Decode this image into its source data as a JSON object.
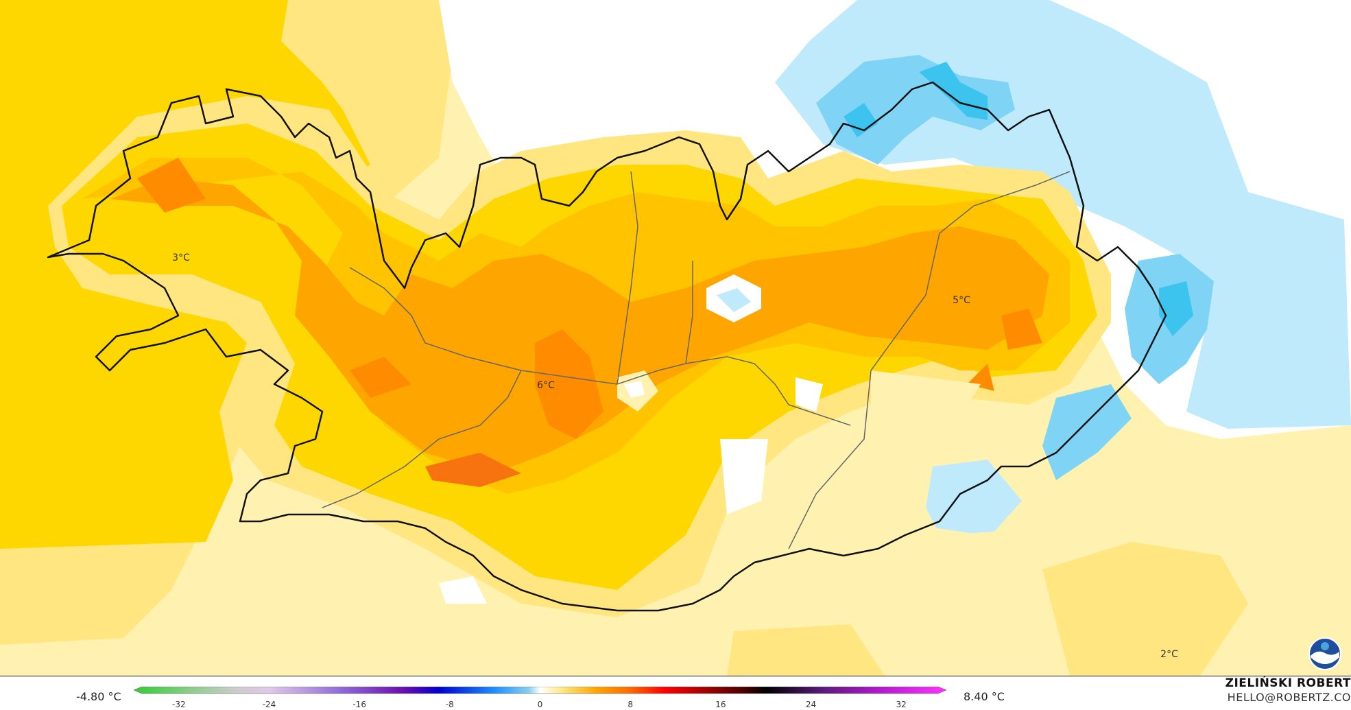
{
  "map": {
    "region_labels": {
      "west": "3°C",
      "center": "6°C",
      "east": "5°C",
      "southeast_sea": "2°C"
    },
    "colors": {
      "t_neg": "#bfeafc",
      "t_neg_strong": "#7fd4f5",
      "t_neg_core": "#3dc4ee",
      "t0": "#ffffff",
      "t1": "#fff2b0",
      "t2": "#ffe680",
      "t3": "#ffd700",
      "t4": "#ffc300",
      "t5": "#ffa500",
      "t6": "#ff8c00",
      "t7": "#f7730f",
      "coast": "#111111",
      "border": "#666666"
    },
    "logo": "noaa-logo-icon"
  },
  "legend": {
    "min_label": "-4.80 °C",
    "max_label": "8.40 °C",
    "ticks": [
      "-32",
      "-24",
      "-16",
      "-8",
      "0",
      "8",
      "16",
      "24",
      "32"
    ],
    "tick_values": [
      -32,
      -24,
      -16,
      -8,
      0,
      8,
      16,
      24,
      32
    ],
    "range": [
      -36,
      36
    ],
    "stops": [
      {
        "v": -36,
        "c": "#32cd32"
      },
      {
        "v": -30,
        "c": "#9acd9a"
      },
      {
        "v": -27,
        "c": "#cccccc"
      },
      {
        "v": -24,
        "c": "#e0c8e8"
      },
      {
        "v": -18,
        "c": "#9370db"
      },
      {
        "v": -12,
        "c": "#6a0dad"
      },
      {
        "v": -9,
        "c": "#0000cd"
      },
      {
        "v": -4,
        "c": "#1e90ff"
      },
      {
        "v": -1,
        "c": "#87ceeb"
      },
      {
        "v": 0,
        "c": "#ffffff"
      },
      {
        "v": 2,
        "c": "#ffe680"
      },
      {
        "v": 5,
        "c": "#ffa500"
      },
      {
        "v": 8,
        "c": "#ff6a00"
      },
      {
        "v": 11,
        "c": "#ff0000"
      },
      {
        "v": 15,
        "c": "#9b0000"
      },
      {
        "v": 18,
        "c": "#4a0000"
      },
      {
        "v": 20,
        "c": "#000000"
      },
      {
        "v": 25,
        "c": "#5a1a7a"
      },
      {
        "v": 30,
        "c": "#b01acb"
      },
      {
        "v": 36,
        "c": "#ff33ff"
      }
    ]
  },
  "credit": {
    "name": "ZIELIŃSKI ROBERT",
    "email": "HELLO@ROBERTZ.CO"
  }
}
